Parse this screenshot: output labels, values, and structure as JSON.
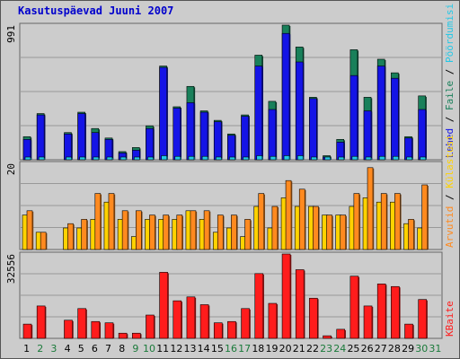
{
  "title": "Kasutuspäevad Juuni 2007",
  "colors": {
    "pageviews": "#1414e6",
    "hits": "#19805a",
    "visits": "#23c8e6",
    "bandwidth": "#ff1c1c",
    "unique": "#ffd200",
    "files": "#ff8a1f",
    "weekend_tick": "#1a7a3a",
    "weekday_tick": "#000000",
    "bg": "#cccccc"
  },
  "chart_data": [
    {
      "type": "bar",
      "panel": "top",
      "ymax_label": "991",
      "ylim": [
        0,
        991
      ],
      "categories": [
        "1",
        "2",
        "3",
        "4",
        "5",
        "6",
        "7",
        "8",
        "9",
        "10",
        "11",
        "12",
        "13",
        "14",
        "15",
        "16",
        "17",
        "18",
        "19",
        "20",
        "21",
        "22",
        "23",
        "24",
        "25",
        "26",
        "27",
        "28",
        "29",
        "30",
        "31"
      ],
      "legend_segments": [
        {
          "text": "Lehed",
          "color": "#1414e6"
        },
        {
          "text": " / ",
          "color": "#000000"
        },
        {
          "text": "Faile",
          "color": "#19805a"
        },
        {
          "text": " / ",
          "color": "#000000"
        },
        {
          "text": "Pöördumisi",
          "color": "#23c8e6"
        }
      ],
      "series": [
        {
          "name": "Pöördumisi",
          "values": [
            170,
            340,
            0,
            200,
            350,
            230,
            160,
            60,
            90,
            250,
            690,
            390,
            540,
            360,
            290,
            190,
            330,
            770,
            430,
            991,
            830,
            460,
            30,
            150,
            810,
            460,
            740,
            640,
            170,
            470,
            0
          ]
        },
        {
          "name": "Faile",
          "values": [
            150,
            330,
            0,
            190,
            340,
            200,
            150,
            50,
            70,
            230,
            680,
            380,
            420,
            350,
            280,
            180,
            320,
            690,
            370,
            930,
            720,
            450,
            20,
            130,
            620,
            360,
            690,
            600,
            160,
            370,
            0
          ]
        },
        {
          "name": "Lehed",
          "values": [
            15,
            20,
            0,
            15,
            20,
            20,
            15,
            10,
            10,
            15,
            30,
            25,
            25,
            25,
            20,
            15,
            20,
            30,
            25,
            30,
            30,
            20,
            10,
            15,
            25,
            20,
            25,
            25,
            15,
            20,
            0
          ]
        }
      ]
    },
    {
      "type": "bar",
      "panel": "middle",
      "ymax_label": "20",
      "ylim": [
        0,
        20
      ],
      "categories": [
        "1",
        "2",
        "3",
        "4",
        "5",
        "6",
        "7",
        "8",
        "9",
        "10",
        "11",
        "12",
        "13",
        "14",
        "15",
        "16",
        "17",
        "18",
        "19",
        "20",
        "21",
        "22",
        "23",
        "24",
        "25",
        "26",
        "27",
        "28",
        "29",
        "30",
        "31"
      ],
      "legend_segments": [
        {
          "text": "Arvutid",
          "color": "#ff8a1f"
        },
        {
          "text": " / ",
          "color": "#000000"
        },
        {
          "text": "Külastusi",
          "color": "#ffd200"
        }
      ],
      "series": [
        {
          "name": "Külastusi",
          "values": [
            8,
            4,
            0,
            5,
            5,
            7,
            11,
            7,
            3,
            7,
            7,
            7,
            9,
            7,
            4,
            5,
            3,
            10,
            5,
            12,
            10,
            10,
            8,
            8,
            10,
            12,
            11,
            11,
            6,
            5,
            0
          ]
        },
        {
          "name": "Arvutid",
          "values": [
            9,
            4,
            0,
            6,
            7,
            13,
            13,
            9,
            9,
            8,
            8,
            8,
            9,
            9,
            8,
            8,
            7,
            13,
            10,
            16,
            14,
            10,
            8,
            8,
            13,
            19,
            13,
            13,
            7,
            15,
            0
          ]
        }
      ]
    },
    {
      "type": "bar",
      "panel": "bottom",
      "ymax_label": "32556",
      "ylim": [
        0,
        32556
      ],
      "categories": [
        "1",
        "2",
        "3",
        "4",
        "5",
        "6",
        "7",
        "8",
        "9",
        "10",
        "11",
        "12",
        "13",
        "14",
        "15",
        "16",
        "17",
        "18",
        "19",
        "20",
        "21",
        "22",
        "23",
        "24",
        "25",
        "26",
        "27",
        "28",
        "29",
        "30",
        "31"
      ],
      "legend_segments": [
        {
          "text": "KBaite",
          "color": "#ff1c1c"
        }
      ],
      "series": [
        {
          "name": "KBaite",
          "values": [
            5500,
            12500,
            0,
            7000,
            11500,
            6500,
            6000,
            2000,
            2000,
            9000,
            25500,
            14500,
            16000,
            13000,
            6000,
            6500,
            11500,
            25000,
            13500,
            32556,
            26500,
            15500,
            1000,
            3500,
            24000,
            12500,
            21000,
            20000,
            5500,
            15000,
            0
          ]
        }
      ]
    }
  ],
  "x_ticks": [
    "1",
    "2",
    "3",
    "4",
    "5",
    "6",
    "7",
    "8",
    "9",
    "10",
    "11",
    "12",
    "13",
    "14",
    "15",
    "16",
    "17",
    "18",
    "19",
    "20",
    "21",
    "22",
    "23",
    "24",
    "25",
    "26",
    "27",
    "28",
    "29",
    "30",
    "31"
  ],
  "weekend_days": [
    "2",
    "3",
    "9",
    "10",
    "16",
    "17",
    "23",
    "24",
    "30",
    "31"
  ]
}
